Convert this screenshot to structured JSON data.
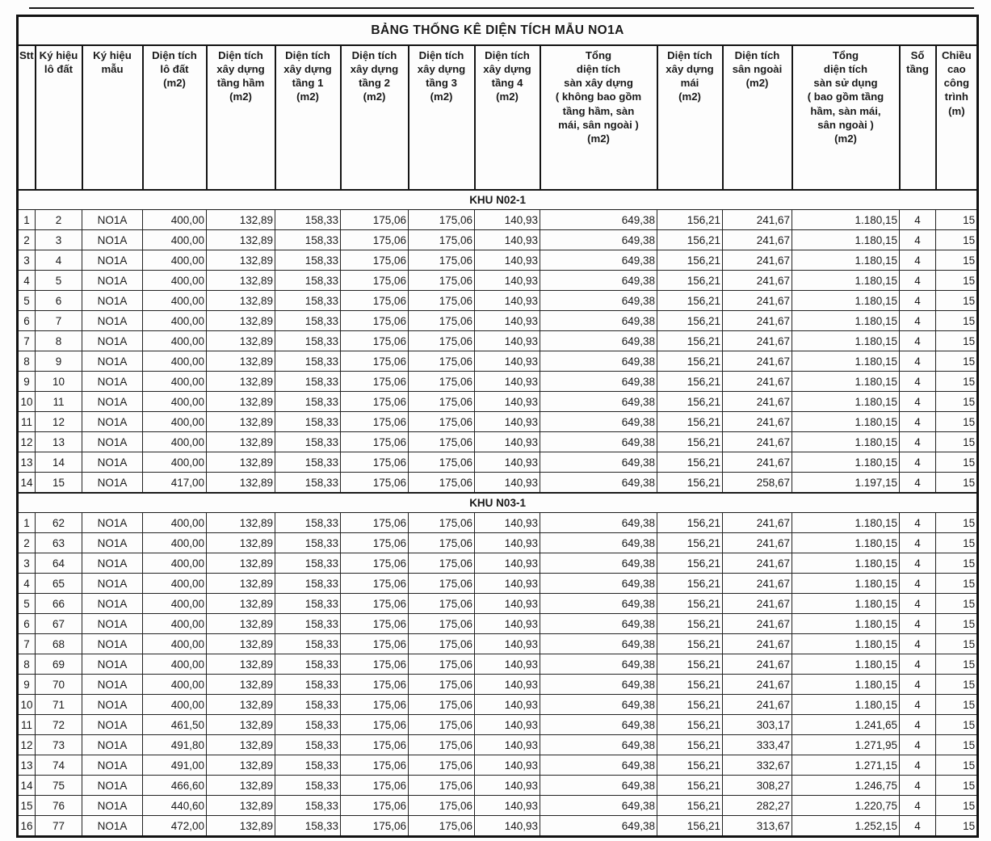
{
  "page": {
    "title": "BẢNG THỐNG KÊ DIỆN TÍCH MẪU NO1A"
  },
  "table": {
    "columns": [
      {
        "id": "stt",
        "align": "center",
        "label": "Stt"
      },
      {
        "id": "ky-hieu-lo-dat",
        "align": "center",
        "label": "Ký hiệu\nlô đất"
      },
      {
        "id": "ky-hieu-mau",
        "align": "center",
        "label": "Ký hiệu\nmẫu"
      },
      {
        "id": "dien-tich-lo-dat",
        "align": "right",
        "label": "Diện tích\nlô đất\n(m2)"
      },
      {
        "id": "dt-xd-tang-ham",
        "align": "right",
        "label": "Diện tích\nxây dựng\ntầng hầm\n(m2)"
      },
      {
        "id": "dt-xd-tang-1",
        "align": "right",
        "label": "Diện tích\nxây dựng\ntầng 1\n(m2)"
      },
      {
        "id": "dt-xd-tang-2",
        "align": "right",
        "label": "Diện tích\nxây dựng\ntầng 2\n(m2)"
      },
      {
        "id": "dt-xd-tang-3",
        "align": "right",
        "label": "Diện tích\nxây dựng\ntầng 3\n(m2)"
      },
      {
        "id": "dt-xd-tang-4",
        "align": "right",
        "label": "Diện tích\nxây dựng\ntầng 4\n(m2)"
      },
      {
        "id": "tong-dt-san-xay-dung",
        "align": "right",
        "label": "Tổng\ndiện tích\nsàn xây dựng\n( không bao gồm\ntầng hầm, sàn\nmái, sân ngoài )\n(m2)"
      },
      {
        "id": "dt-xd-mai",
        "align": "right",
        "label": "Diện tích\nxây dựng\nmái\n(m2)"
      },
      {
        "id": "dt-san-ngoai",
        "align": "right",
        "label": "Diện tích\nsân ngoài\n(m2)"
      },
      {
        "id": "tong-dt-san-su-dung",
        "align": "right",
        "label": "Tổng\ndiện tích\nsàn sử dụng\n( bao gồm tầng\nhầm, sàn mái,\nsân ngoài )\n(m2)"
      },
      {
        "id": "so-tang",
        "align": "center",
        "label": "Số\ntầng"
      },
      {
        "id": "chieu-cao-cong-trinh",
        "align": "right",
        "label": "Chiều\ncao\ncông\ntrình\n(m)"
      }
    ],
    "sections": [
      {
        "name": "KHU N02-1",
        "rows": [
          [
            "1",
            "2",
            "NO1A",
            "400,00",
            "132,89",
            "158,33",
            "175,06",
            "175,06",
            "140,93",
            "649,38",
            "156,21",
            "241,67",
            "1.180,15",
            "4",
            "15"
          ],
          [
            "2",
            "3",
            "NO1A",
            "400,00",
            "132,89",
            "158,33",
            "175,06",
            "175,06",
            "140,93",
            "649,38",
            "156,21",
            "241,67",
            "1.180,15",
            "4",
            "15"
          ],
          [
            "3",
            "4",
            "NO1A",
            "400,00",
            "132,89",
            "158,33",
            "175,06",
            "175,06",
            "140,93",
            "649,38",
            "156,21",
            "241,67",
            "1.180,15",
            "4",
            "15"
          ],
          [
            "4",
            "5",
            "NO1A",
            "400,00",
            "132,89",
            "158,33",
            "175,06",
            "175,06",
            "140,93",
            "649,38",
            "156,21",
            "241,67",
            "1.180,15",
            "4",
            "15"
          ],
          [
            "5",
            "6",
            "NO1A",
            "400,00",
            "132,89",
            "158,33",
            "175,06",
            "175,06",
            "140,93",
            "649,38",
            "156,21",
            "241,67",
            "1.180,15",
            "4",
            "15"
          ],
          [
            "6",
            "7",
            "NO1A",
            "400,00",
            "132,89",
            "158,33",
            "175,06",
            "175,06",
            "140,93",
            "649,38",
            "156,21",
            "241,67",
            "1.180,15",
            "4",
            "15"
          ],
          [
            "7",
            "8",
            "NO1A",
            "400,00",
            "132,89",
            "158,33",
            "175,06",
            "175,06",
            "140,93",
            "649,38",
            "156,21",
            "241,67",
            "1.180,15",
            "4",
            "15"
          ],
          [
            "8",
            "9",
            "NO1A",
            "400,00",
            "132,89",
            "158,33",
            "175,06",
            "175,06",
            "140,93",
            "649,38",
            "156,21",
            "241,67",
            "1.180,15",
            "4",
            "15"
          ],
          [
            "9",
            "10",
            "NO1A",
            "400,00",
            "132,89",
            "158,33",
            "175,06",
            "175,06",
            "140,93",
            "649,38",
            "156,21",
            "241,67",
            "1.180,15",
            "4",
            "15"
          ],
          [
            "10",
            "11",
            "NO1A",
            "400,00",
            "132,89",
            "158,33",
            "175,06",
            "175,06",
            "140,93",
            "649,38",
            "156,21",
            "241,67",
            "1.180,15",
            "4",
            "15"
          ],
          [
            "11",
            "12",
            "NO1A",
            "400,00",
            "132,89",
            "158,33",
            "175,06",
            "175,06",
            "140,93",
            "649,38",
            "156,21",
            "241,67",
            "1.180,15",
            "4",
            "15"
          ],
          [
            "12",
            "13",
            "NO1A",
            "400,00",
            "132,89",
            "158,33",
            "175,06",
            "175,06",
            "140,93",
            "649,38",
            "156,21",
            "241,67",
            "1.180,15",
            "4",
            "15"
          ],
          [
            "13",
            "14",
            "NO1A",
            "400,00",
            "132,89",
            "158,33",
            "175,06",
            "175,06",
            "140,93",
            "649,38",
            "156,21",
            "241,67",
            "1.180,15",
            "4",
            "15"
          ],
          [
            "14",
            "15",
            "NO1A",
            "417,00",
            "132,89",
            "158,33",
            "175,06",
            "175,06",
            "140,93",
            "649,38",
            "156,21",
            "258,67",
            "1.197,15",
            "4",
            "15"
          ]
        ]
      },
      {
        "name": "KHU N03-1",
        "rows": [
          [
            "1",
            "62",
            "NO1A",
            "400,00",
            "132,89",
            "158,33",
            "175,06",
            "175,06",
            "140,93",
            "649,38",
            "156,21",
            "241,67",
            "1.180,15",
            "4",
            "15"
          ],
          [
            "2",
            "63",
            "NO1A",
            "400,00",
            "132,89",
            "158,33",
            "175,06",
            "175,06",
            "140,93",
            "649,38",
            "156,21",
            "241,67",
            "1.180,15",
            "4",
            "15"
          ],
          [
            "3",
            "64",
            "NO1A",
            "400,00",
            "132,89",
            "158,33",
            "175,06",
            "175,06",
            "140,93",
            "649,38",
            "156,21",
            "241,67",
            "1.180,15",
            "4",
            "15"
          ],
          [
            "4",
            "65",
            "NO1A",
            "400,00",
            "132,89",
            "158,33",
            "175,06",
            "175,06",
            "140,93",
            "649,38",
            "156,21",
            "241,67",
            "1.180,15",
            "4",
            "15"
          ],
          [
            "5",
            "66",
            "NO1A",
            "400,00",
            "132,89",
            "158,33",
            "175,06",
            "175,06",
            "140,93",
            "649,38",
            "156,21",
            "241,67",
            "1.180,15",
            "4",
            "15"
          ],
          [
            "6",
            "67",
            "NO1A",
            "400,00",
            "132,89",
            "158,33",
            "175,06",
            "175,06",
            "140,93",
            "649,38",
            "156,21",
            "241,67",
            "1.180,15",
            "4",
            "15"
          ],
          [
            "7",
            "68",
            "NO1A",
            "400,00",
            "132,89",
            "158,33",
            "175,06",
            "175,06",
            "140,93",
            "649,38",
            "156,21",
            "241,67",
            "1.180,15",
            "4",
            "15"
          ],
          [
            "8",
            "69",
            "NO1A",
            "400,00",
            "132,89",
            "158,33",
            "175,06",
            "175,06",
            "140,93",
            "649,38",
            "156,21",
            "241,67",
            "1.180,15",
            "4",
            "15"
          ],
          [
            "9",
            "70",
            "NO1A",
            "400,00",
            "132,89",
            "158,33",
            "175,06",
            "175,06",
            "140,93",
            "649,38",
            "156,21",
            "241,67",
            "1.180,15",
            "4",
            "15"
          ],
          [
            "10",
            "71",
            "NO1A",
            "400,00",
            "132,89",
            "158,33",
            "175,06",
            "175,06",
            "140,93",
            "649,38",
            "156,21",
            "241,67",
            "1.180,15",
            "4",
            "15"
          ],
          [
            "11",
            "72",
            "NO1A",
            "461,50",
            "132,89",
            "158,33",
            "175,06",
            "175,06",
            "140,93",
            "649,38",
            "156,21",
            "303,17",
            "1.241,65",
            "4",
            "15"
          ],
          [
            "12",
            "73",
            "NO1A",
            "491,80",
            "132,89",
            "158,33",
            "175,06",
            "175,06",
            "140,93",
            "649,38",
            "156,21",
            "333,47",
            "1.271,95",
            "4",
            "15"
          ],
          [
            "13",
            "74",
            "NO1A",
            "491,00",
            "132,89",
            "158,33",
            "175,06",
            "175,06",
            "140,93",
            "649,38",
            "156,21",
            "332,67",
            "1.271,15",
            "4",
            "15"
          ],
          [
            "14",
            "75",
            "NO1A",
            "466,60",
            "132,89",
            "158,33",
            "175,06",
            "175,06",
            "140,93",
            "649,38",
            "156,21",
            "308,27",
            "1.246,75",
            "4",
            "15"
          ],
          [
            "15",
            "76",
            "NO1A",
            "440,60",
            "132,89",
            "158,33",
            "175,06",
            "175,06",
            "140,93",
            "649,38",
            "156,21",
            "282,27",
            "1.220,75",
            "4",
            "15"
          ],
          [
            "16",
            "77",
            "NO1A",
            "472,00",
            "132,89",
            "158,33",
            "175,06",
            "175,06",
            "140,93",
            "649,38",
            "156,21",
            "313,67",
            "1.252,15",
            "4",
            "15"
          ]
        ]
      }
    ]
  }
}
